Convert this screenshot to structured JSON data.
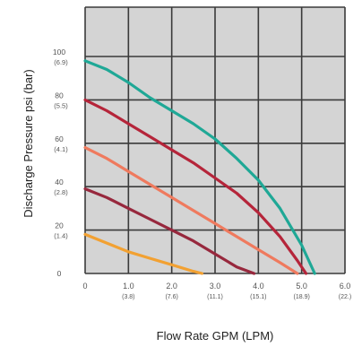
{
  "chart_data": {
    "type": "line",
    "xlabel": "Flow Rate GPM (LPM)",
    "ylabel": "Discharge Pressure psi (bar)",
    "xlim": [
      0,
      6
    ],
    "ylim": [
      0,
      120
    ],
    "grid": true,
    "legend": "none",
    "plot_background": "#d4d4d4",
    "grid_color": "#3a3a3a",
    "x_ticks": [
      {
        "value": 0,
        "label": "0",
        "sub": ""
      },
      {
        "value": 1,
        "label": "1.0",
        "sub": "(3.8)"
      },
      {
        "value": 2,
        "label": "2.0",
        "sub": "(7.6)"
      },
      {
        "value": 3,
        "label": "3.0",
        "sub": "(11.1)"
      },
      {
        "value": 4,
        "label": "4.0",
        "sub": "(15.1)"
      },
      {
        "value": 5,
        "label": "5.0",
        "sub": "(18.9)"
      },
      {
        "value": 6,
        "label": "6.0",
        "sub": "(22.)"
      }
    ],
    "y_ticks": [
      {
        "value": 0,
        "label": "0",
        "sub": ""
      },
      {
        "value": 20,
        "label": "20",
        "sub": "(1.4)"
      },
      {
        "value": 40,
        "label": "40",
        "sub": "(2.8)"
      },
      {
        "value": 60,
        "label": "60",
        "sub": "(4.1)"
      },
      {
        "value": 80,
        "label": "80",
        "sub": "(5.5)"
      },
      {
        "value": 100,
        "label": "100",
        "sub": "(6.9)"
      }
    ],
    "series": [
      {
        "color": "#1fa896",
        "x": [
          0,
          0.5,
          1.0,
          1.5,
          2.0,
          2.5,
          3.0,
          3.5,
          4.0,
          4.5,
          5.0,
          5.3
        ],
        "y": [
          98,
          94,
          88,
          81,
          75,
          69,
          62,
          53,
          43,
          30,
          13,
          0
        ]
      },
      {
        "color": "#b5253a",
        "x": [
          0,
          0.5,
          1.0,
          1.5,
          2.0,
          2.5,
          3.0,
          3.5,
          4.0,
          4.5,
          4.9,
          5.1
        ],
        "y": [
          80,
          75,
          69,
          63,
          57,
          51,
          44,
          37,
          28,
          17,
          6,
          0
        ]
      },
      {
        "color": "#ef7a5e",
        "x": [
          0,
          0.5,
          1.0,
          1.5,
          2.0,
          2.5,
          3.0,
          3.5,
          4.0,
          4.5,
          4.9
        ],
        "y": [
          58,
          53,
          47,
          41,
          35,
          29,
          23,
          17,
          11,
          5,
          0
        ]
      },
      {
        "color": "#97283d",
        "x": [
          0,
          0.5,
          1.0,
          1.5,
          2.0,
          2.5,
          3.0,
          3.5,
          3.9
        ],
        "y": [
          39,
          35,
          30,
          25,
          20,
          15,
          9,
          3,
          0
        ]
      },
      {
        "color": "#f2a132",
        "x": [
          0,
          0.5,
          1.0,
          1.5,
          2.0,
          2.5,
          2.7
        ],
        "y": [
          18,
          14,
          10,
          7,
          4,
          1,
          0
        ]
      }
    ]
  }
}
